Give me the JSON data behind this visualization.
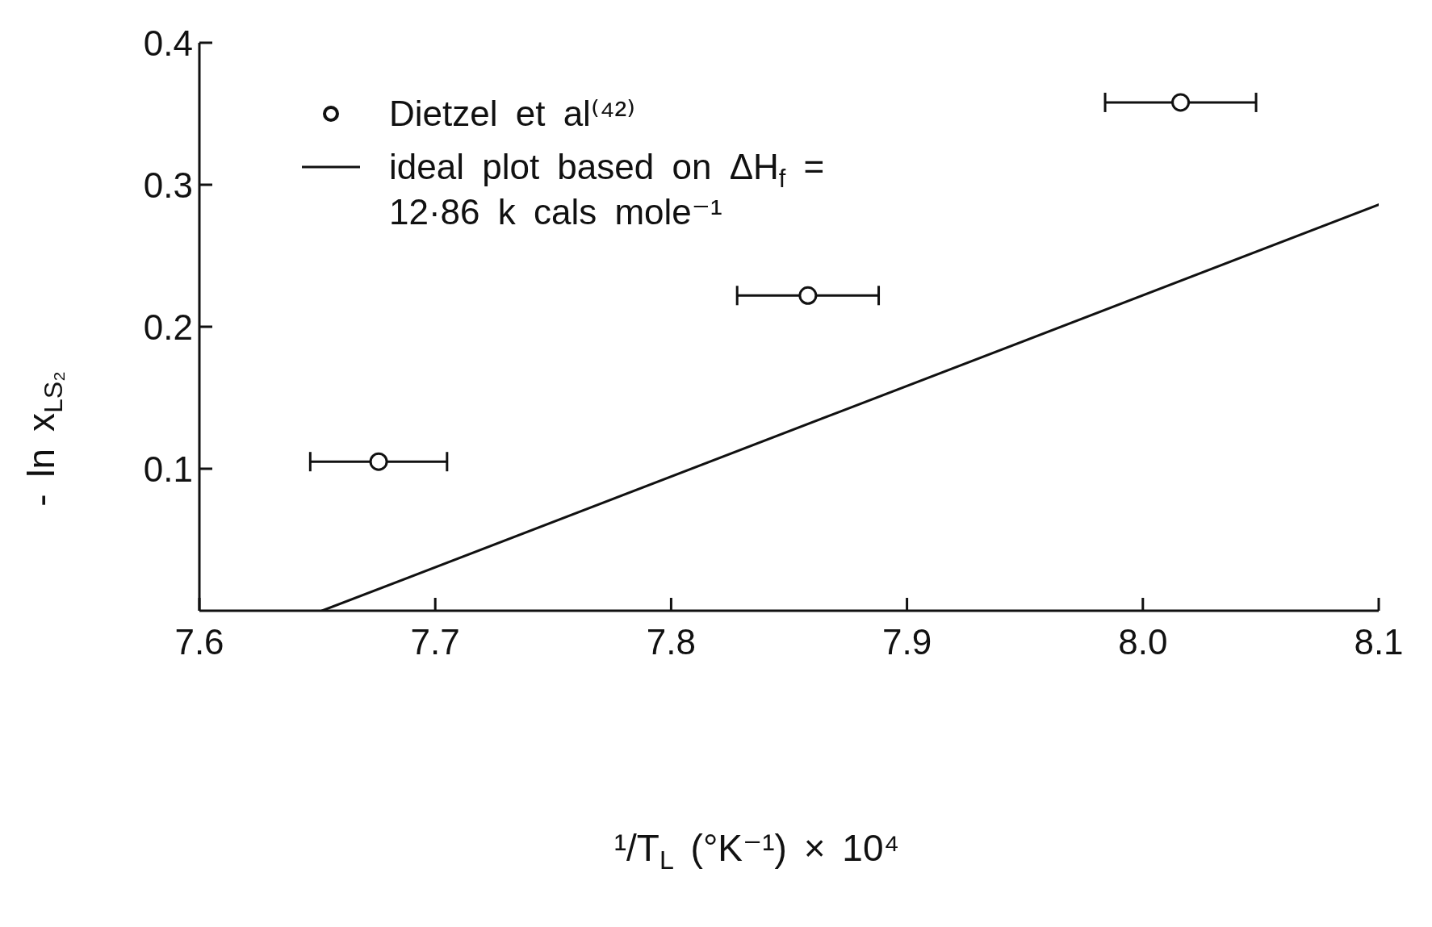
{
  "chart_data": {
    "type": "scatter",
    "xlabel": "¹/T$_{L}$ (°K⁻¹) × 10⁴",
    "ylabel": "- ln x$_{LS₂}$",
    "xlim": [
      7.6,
      8.1
    ],
    "xticks": [
      7.6,
      7.7,
      7.8,
      7.9,
      {
        "value": 8.0,
        "label": "8.0"
      },
      8.1
    ],
    "ylim": [
      0,
      0.4
    ],
    "yticks": [
      0.1,
      0.2,
      0.3,
      0.4
    ],
    "series": [
      {
        "name": "Dietzel et al⁽⁴²⁾",
        "color": "#111111",
        "marker": "circle",
        "x": [
          7.676,
          7.858,
          8.016
        ],
        "values": [
          0.105,
          0.222,
          0.358
        ],
        "xerrors": [
          0.029,
          0.03,
          0.032
        ]
      },
      {
        "name": "ideal plot based on ΔH$_{f}$ = 12·86 k cals mole⁻¹",
        "type": "line",
        "color": "#111111",
        "line_style": "solid",
        "x": [
          7.652,
          8.1
        ],
        "values": [
          0,
          0.286
        ]
      }
    ],
    "legend": "top left"
  }
}
